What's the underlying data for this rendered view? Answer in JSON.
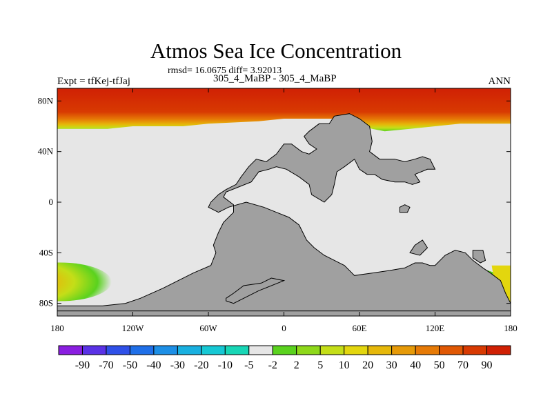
{
  "chart_data": {
    "type": "heatmap",
    "title": "Atmos Sea Ice Concentration",
    "stats": "rmsd= 16.0675 diff= 3.92013",
    "case_label": "305_4_MaBP - 305_4_MaBP",
    "expt_label": "Expt = tfKej-tfJaj",
    "season_label": "ANN",
    "xlim": [
      -180,
      180
    ],
    "ylim": [
      -90,
      90
    ],
    "x_ticks": [
      {
        "value": -180,
        "label": "180"
      },
      {
        "value": -120,
        "label": "120W"
      },
      {
        "value": -60,
        "label": "60W"
      },
      {
        "value": 0,
        "label": "0"
      },
      {
        "value": 60,
        "label": "60E"
      },
      {
        "value": 120,
        "label": "120E"
      },
      {
        "value": 180,
        "label": "180"
      }
    ],
    "y_ticks": [
      {
        "value": 80,
        "label": "80N"
      },
      {
        "value": 40,
        "label": "40N"
      },
      {
        "value": 0,
        "label": "0"
      },
      {
        "value": -40,
        "label": "40S"
      },
      {
        "value": -80,
        "label": "80S"
      }
    ],
    "colorbar": {
      "levels": [
        "-90",
        "-70",
        "-50",
        "-40",
        "-30",
        "-20",
        "-10",
        "-5",
        "-2",
        "2",
        "5",
        "10",
        "20",
        "30",
        "40",
        "50",
        "70",
        "90"
      ],
      "colors": [
        "#8a1ee0",
        "#5a32e6",
        "#2f50e8",
        "#1f6fe8",
        "#1d8fe6",
        "#19b0e0",
        "#16c8d4",
        "#18d6b6",
        "#e6e6e6",
        "#5ad21e",
        "#8ed81a",
        "#c4de18",
        "#e3d60e",
        "#e6b80a",
        "#e69a08",
        "#e67a06",
        "#e05804",
        "#d83a02",
        "#d02004"
      ]
    },
    "regions": {
      "land_color": "#a0a0a0",
      "no_change_color": "#e6e6e6",
      "land": [
        [
          [
            -120,
            -86
          ],
          [
            -180,
            -86
          ],
          [
            -180,
            -82
          ],
          [
            -144,
            -82
          ],
          [
            -126,
            -80
          ],
          [
            -114,
            -76
          ],
          [
            -96,
            -68
          ],
          [
            -84,
            -62
          ],
          [
            -72,
            -56
          ],
          [
            -58,
            -50
          ],
          [
            -54,
            -40
          ],
          [
            -56,
            -34
          ],
          [
            -52,
            -24
          ],
          [
            -48,
            -16
          ],
          [
            -40,
            -8
          ],
          [
            -40,
            -2
          ],
          [
            -48,
            4
          ],
          [
            -46,
            8
          ],
          [
            -36,
            12
          ],
          [
            -26,
            16
          ],
          [
            -20,
            24
          ],
          [
            -12,
            26
          ],
          [
            -6,
            28
          ],
          [
            2,
            26
          ],
          [
            12,
            20
          ],
          [
            20,
            14
          ],
          [
            22,
            6
          ],
          [
            32,
            0
          ],
          [
            38,
            6
          ],
          [
            40,
            14
          ],
          [
            42,
            24
          ],
          [
            48,
            28
          ],
          [
            56,
            34
          ],
          [
            60,
            26
          ],
          [
            66,
            22
          ],
          [
            72,
            22
          ],
          [
            78,
            18
          ],
          [
            88,
            16
          ],
          [
            96,
            16
          ],
          [
            102,
            14
          ],
          [
            108,
            16
          ],
          [
            104,
            22
          ],
          [
            114,
            26
          ],
          [
            120,
            26
          ],
          [
            116,
            34
          ],
          [
            110,
            36
          ],
          [
            104,
            34
          ],
          [
            96,
            32
          ],
          [
            88,
            34
          ],
          [
            82,
            34
          ],
          [
            76,
            34
          ],
          [
            68,
            40
          ],
          [
            70,
            48
          ],
          [
            68,
            60
          ],
          [
            60,
            66
          ],
          [
            52,
            70
          ],
          [
            40,
            68
          ],
          [
            36,
            62
          ],
          [
            28,
            62
          ],
          [
            20,
            56
          ],
          [
            16,
            52
          ],
          [
            20,
            46
          ],
          [
            26,
            42
          ],
          [
            20,
            38
          ],
          [
            14,
            40
          ],
          [
            6,
            46
          ],
          [
            0,
            46
          ],
          [
            -6,
            38
          ],
          [
            -14,
            32
          ],
          [
            -22,
            34
          ],
          [
            -28,
            28
          ],
          [
            -34,
            20
          ],
          [
            -38,
            14
          ],
          [
            -46,
            10
          ],
          [
            -52,
            6
          ],
          [
            -58,
            0
          ],
          [
            -60,
            -4
          ],
          [
            -52,
            -8
          ],
          [
            -44,
            -4
          ],
          [
            -30,
            0
          ],
          [
            -16,
            -4
          ],
          [
            -6,
            -8
          ],
          [
            4,
            -12
          ],
          [
            12,
            -18
          ],
          [
            18,
            -30
          ],
          [
            24,
            -36
          ],
          [
            32,
            -42
          ],
          [
            40,
            -46
          ],
          [
            48,
            -50
          ],
          [
            56,
            -58
          ],
          [
            70,
            -56
          ],
          [
            84,
            -54
          ],
          [
            96,
            -52
          ],
          [
            104,
            -48
          ],
          [
            110,
            -48
          ],
          [
            116,
            -50
          ],
          [
            120,
            -50
          ],
          [
            128,
            -42
          ],
          [
            136,
            -38
          ],
          [
            144,
            -40
          ],
          [
            150,
            -46
          ],
          [
            158,
            -52
          ],
          [
            164,
            -56
          ],
          [
            172,
            -62
          ],
          [
            176,
            -72
          ],
          [
            180,
            -80
          ],
          [
            180,
            -86
          ]
        ]
      ],
      "land_extra": [
        [
          [
            -46,
            -76
          ],
          [
            -40,
            -72
          ],
          [
            -32,
            -66
          ],
          [
            -18,
            -64
          ],
          [
            -10,
            -60
          ],
          [
            0,
            -62
          ],
          [
            -20,
            -70
          ],
          [
            -40,
            -80
          ],
          [
            -46,
            -78
          ]
        ],
        [
          [
            100,
            -40
          ],
          [
            108,
            -42
          ],
          [
            114,
            -36
          ],
          [
            110,
            -30
          ],
          [
            104,
            -34
          ]
        ],
        [
          [
            92,
            -8
          ],
          [
            98,
            -8
          ],
          [
            100,
            -4
          ],
          [
            96,
            -2
          ],
          [
            92,
            -4
          ]
        ],
        [
          [
            150,
            -38
          ],
          [
            158,
            -38
          ],
          [
            160,
            -46
          ],
          [
            156,
            -48
          ],
          [
            150,
            -44
          ]
        ]
      ],
      "north_ice_edge": [
        [
          -180,
          58
        ],
        [
          -160,
          58
        ],
        [
          -140,
          58
        ],
        [
          -120,
          60
        ],
        [
          -100,
          60
        ],
        [
          -80,
          60
        ],
        [
          -60,
          62
        ],
        [
          -40,
          63
        ],
        [
          -20,
          64
        ],
        [
          0,
          66
        ],
        [
          20,
          66
        ],
        [
          40,
          66
        ],
        [
          60,
          62
        ],
        [
          70,
          58
        ],
        [
          80,
          56
        ],
        [
          100,
          58
        ],
        [
          120,
          60
        ],
        [
          140,
          62
        ],
        [
          160,
          62
        ],
        [
          180,
          62
        ]
      ]
    }
  }
}
